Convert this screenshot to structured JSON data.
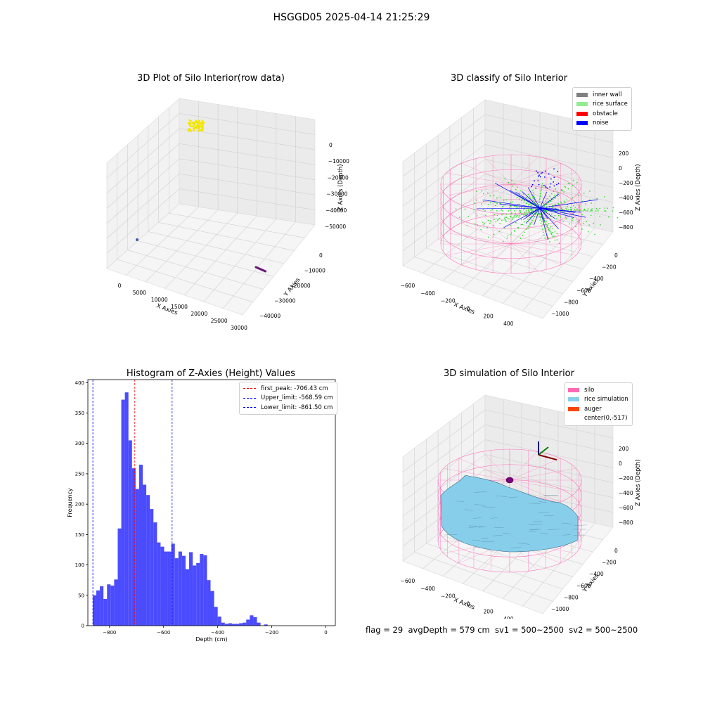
{
  "suptitle": "HSGGD05 2025-04-14 21:25:29",
  "footer": "flag = 29  avgDepth = 579 cm  sv1 = 500~2500  sv2 = 500~2500",
  "colors": {
    "wall": "#808080",
    "rice_surface": "#90ee90",
    "obstacle": "#ff0000",
    "noise": "#0000ff",
    "silo": "#ff69b4",
    "rice_sim": "#87ceeb",
    "auger": "#ff4500",
    "hist_bar": "#4b4bff"
  },
  "chart_data": [
    {
      "type": "scatter",
      "title": "3D Plot of Silo Interior(row data)",
      "xlabel": "X Axies",
      "ylabel": "Y Axies",
      "zlabel": "Z Axies (Depth)",
      "x_ticks": [
        "0",
        "5000",
        "10000",
        "15000",
        "20000",
        "25000",
        "30000"
      ],
      "y_ticks": [
        "0",
        "−10000",
        "−20000",
        "−30000",
        "−40000"
      ],
      "z_ticks": [
        "0",
        "−10000",
        "−20000",
        "−30000",
        "−40000",
        "−50000"
      ],
      "clusters": [
        {
          "name": "",
          "color": "#f2e600"
        },
        {
          "name": "",
          "color": "#3a5fa8"
        },
        {
          "name": "",
          "color": "#6a1b7a"
        }
      ]
    },
    {
      "type": "scatter",
      "title": "3D classify of Silo Interior",
      "xlabel": "X Axies",
      "ylabel": "Y Axies",
      "zlabel": "Z Axies (Depth)",
      "x_ticks": [
        "−600",
        "−400",
        "−200",
        "0",
        "200",
        "400",
        "600"
      ],
      "y_ticks": [
        "0",
        "−200",
        "−400",
        "−600",
        "−800",
        "−1000"
      ],
      "z_ticks": [
        "200",
        "0",
        "−200",
        "−400",
        "−600",
        "−800"
      ],
      "legend": [
        "inner wall",
        "rice surface",
        "obstacle",
        "noise"
      ]
    },
    {
      "type": "bar",
      "title": "Histogram of Z-Axies (Height) Values",
      "xlabel": "Depth (cm)",
      "ylabel": "Frequency",
      "xlim": [
        -880,
        35
      ],
      "ylim": [
        0,
        405
      ],
      "x_ticks": [
        -800,
        -600,
        -400,
        -200,
        0
      ],
      "y_ticks": [
        0,
        50,
        100,
        150,
        200,
        250,
        300,
        350,
        400
      ],
      "bin_start": -862,
      "bin_width": 13.2,
      "values": [
        50,
        58,
        65,
        44,
        68,
        66,
        76,
        160,
        372,
        384,
        305,
        259,
        225,
        265,
        232,
        215,
        192,
        170,
        137,
        130,
        122,
        122,
        135,
        111,
        122,
        115,
        93,
        121,
        99,
        103,
        118,
        116,
        75,
        57,
        31,
        15,
        5,
        3,
        4,
        3,
        3,
        4,
        5,
        10,
        17,
        14,
        5,
        0,
        2
      ],
      "vlines": [
        {
          "label": "first_peak: -706.43 cm",
          "value": -706.43,
          "color": "#ff0000"
        },
        {
          "label": "Upper_limit: -568.59 cm",
          "value": -568.59,
          "color": "#0000ff"
        },
        {
          "label": "Lower_limit: -861.50 cm",
          "value": -861.5,
          "color": "#0000ff"
        }
      ]
    },
    {
      "type": "area",
      "title": "3D simulation of Silo Interior",
      "xlabel": "X Axies",
      "ylabel": "Y Axies",
      "zlabel": "Z Axies (Depth)",
      "x_ticks": [
        "−600",
        "−400",
        "−200",
        "0",
        "200",
        "400",
        "600"
      ],
      "y_ticks": [
        "0",
        "−200",
        "−400",
        "−600",
        "−800",
        "−1000"
      ],
      "z_ticks": [
        "200",
        "0",
        "−200",
        "−400",
        "−600",
        "−800"
      ],
      "legend": [
        "silo",
        "rice simulation",
        "auger",
        "center(0,-517)"
      ]
    }
  ]
}
